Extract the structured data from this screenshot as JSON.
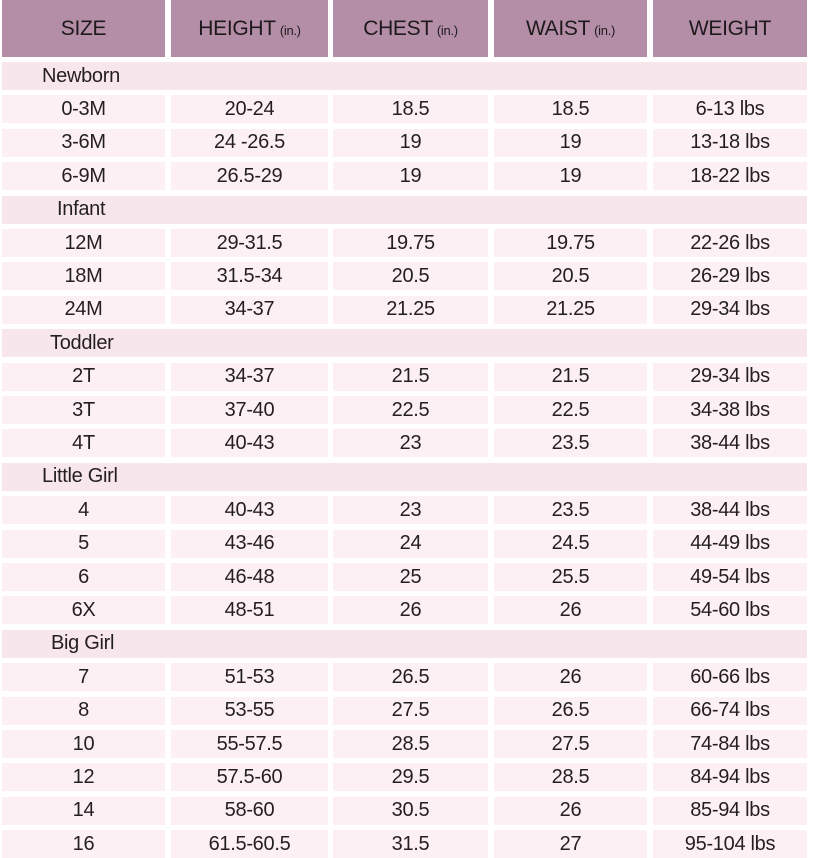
{
  "header": {
    "size": "SIZE",
    "height": "HEIGHT",
    "height_unit": "(in.)",
    "chest": "CHEST",
    "chest_unit": "(in.)",
    "waist": "WAIST",
    "waist_unit": "(in.)",
    "weight": "WEIGHT"
  },
  "sections": [
    {
      "name": "Newborn",
      "rows": [
        {
          "size": "0-3M",
          "height": "20-24",
          "chest": "18.5",
          "waist": "18.5",
          "weight": "6-13 lbs"
        },
        {
          "size": "3-6M",
          "height": "24 -26.5",
          "chest": "19",
          "waist": "19",
          "weight": "13-18 lbs"
        },
        {
          "size": "6-9M",
          "height": "26.5-29",
          "chest": "19",
          "waist": "19",
          "weight": "18-22 lbs"
        }
      ]
    },
    {
      "name": "Infant",
      "rows": [
        {
          "size": "12M",
          "height": "29-31.5",
          "chest": "19.75",
          "waist": "19.75",
          "weight": "22-26 lbs"
        },
        {
          "size": "18M",
          "height": "31.5-34",
          "chest": "20.5",
          "waist": "20.5",
          "weight": "26-29 lbs"
        },
        {
          "size": "24M",
          "height": "34-37",
          "chest": "21.25",
          "waist": "21.25",
          "weight": "29-34 lbs"
        }
      ]
    },
    {
      "name": "Toddler",
      "rows": [
        {
          "size": "2T",
          "height": "34-37",
          "chest": "21.5",
          "waist": "21.5",
          "weight": "29-34 lbs"
        },
        {
          "size": "3T",
          "height": "37-40",
          "chest": "22.5",
          "waist": "22.5",
          "weight": "34-38 lbs"
        },
        {
          "size": "4T",
          "height": "40-43",
          "chest": "23",
          "waist": "23.5",
          "weight": "38-44 lbs"
        }
      ]
    },
    {
      "name": "Little Girl",
      "rows": [
        {
          "size": "4",
          "height": "40-43",
          "chest": "23",
          "waist": "23.5",
          "weight": "38-44 lbs"
        },
        {
          "size": "5",
          "height": "43-46",
          "chest": "24",
          "waist": "24.5",
          "weight": "44-49 lbs"
        },
        {
          "size": "6",
          "height": "46-48",
          "chest": "25",
          "waist": "25.5",
          "weight": "49-54 lbs"
        },
        {
          "size": "6X",
          "height": "48-51",
          "chest": "26",
          "waist": "26",
          "weight": "54-60 lbs"
        }
      ]
    },
    {
      "name": "Big Girl",
      "rows": [
        {
          "size": "7",
          "height": "51-53",
          "chest": "26.5",
          "waist": "26",
          "weight": "60-66 lbs"
        },
        {
          "size": "8",
          "height": "53-55",
          "chest": "27.5",
          "waist": "26.5",
          "weight": "66-74 lbs"
        },
        {
          "size": "10",
          "height": "55-57.5",
          "chest": "28.5",
          "waist": "27.5",
          "weight": "74-84 lbs"
        },
        {
          "size": "12",
          "height": "57.5-60",
          "chest": "29.5",
          "waist": "28.5",
          "weight": "84-94 lbs"
        },
        {
          "size": "14",
          "height": "58-60",
          "chest": "30.5",
          "waist": "26",
          "weight": "85-94 lbs"
        },
        {
          "size": "16",
          "height": "61.5-60.5",
          "chest": "31.5",
          "waist": "27",
          "weight": "95-104 lbs"
        }
      ]
    }
  ],
  "colors": {
    "header_bg": "#b48ea7",
    "row_bg": "#fdf0f4",
    "section_bg": "#f8e6ed"
  }
}
